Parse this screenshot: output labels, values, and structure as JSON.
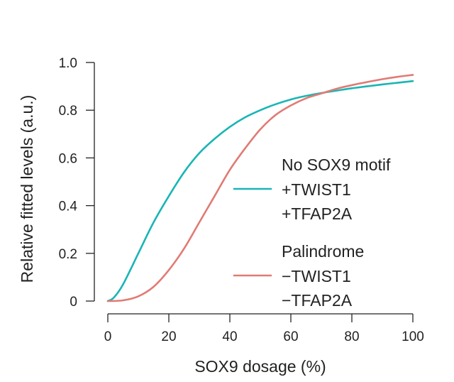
{
  "chart_data": {
    "type": "line",
    "xlabel": "SOX9 dosage (%)",
    "ylabel": "Relative fitted levels (a.u.)",
    "xlim": [
      0,
      100
    ],
    "ylim": [
      0,
      1.0
    ],
    "xticks": [
      0,
      20,
      40,
      60,
      80,
      100
    ],
    "xtick_labels": [
      "0",
      "20",
      "40",
      "60",
      "80",
      "100"
    ],
    "yticks": [
      0,
      0.2,
      0.4,
      0.6,
      0.8,
      1.0
    ],
    "ytick_labels": [
      "0",
      "0.2",
      "0.4",
      "0.6",
      "0.8",
      "1.0"
    ],
    "grid": false,
    "legend_position": "right",
    "series": [
      {
        "name_lines": [
          "No SOX9 motif",
          "+TWIST1",
          "+TFAP2A"
        ],
        "color": "#1ab5b5",
        "x": [
          0,
          2,
          5,
          10,
          15,
          20,
          25,
          30,
          35,
          40,
          45,
          50,
          55,
          60,
          65,
          70,
          75,
          80,
          85,
          90,
          95,
          100
        ],
        "y": [
          0,
          0.015,
          0.07,
          0.2,
          0.33,
          0.44,
          0.54,
          0.62,
          0.68,
          0.73,
          0.77,
          0.8,
          0.825,
          0.845,
          0.86,
          0.872,
          0.882,
          0.892,
          0.9,
          0.908,
          0.915,
          0.922
        ]
      },
      {
        "name_lines": [
          "Palindrome",
          "−TWIST1",
          "−TFAP2A"
        ],
        "color": "#e07b74",
        "x": [
          0,
          5,
          10,
          15,
          20,
          25,
          30,
          35,
          40,
          45,
          50,
          55,
          60,
          65,
          70,
          75,
          80,
          85,
          90,
          95,
          100
        ],
        "y": [
          0,
          0.003,
          0.02,
          0.06,
          0.13,
          0.22,
          0.33,
          0.44,
          0.55,
          0.64,
          0.72,
          0.78,
          0.82,
          0.85,
          0.87,
          0.89,
          0.905,
          0.918,
          0.93,
          0.94,
          0.948
        ]
      }
    ]
  }
}
